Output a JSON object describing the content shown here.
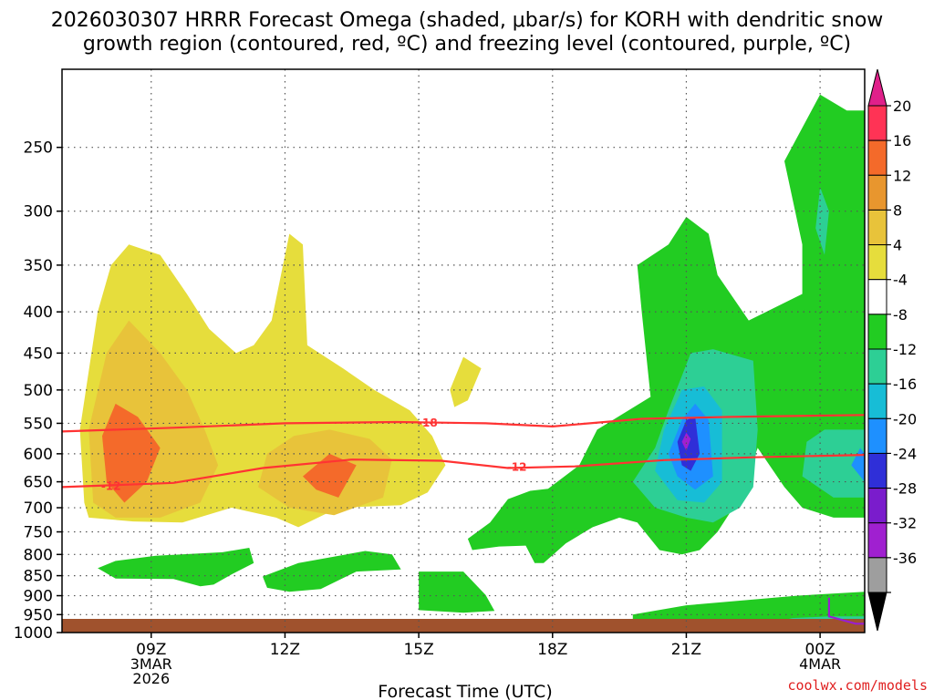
{
  "chart_data": {
    "type": "heatmap",
    "title_line1": "2026030307 HRRR Forecast Omega (shaded, μbar/s) for KORH with dendritic snow",
    "title_line2": "growth region (contoured, red, ºC) and freezing level (contoured, purple, ºC)",
    "xlabel": "Forecast Time (UTC)",
    "ylabel": "",
    "x_range": [
      7,
      25
    ],
    "y_range": [
      1000,
      200
    ],
    "y_ticks": [
      250,
      300,
      350,
      400,
      450,
      500,
      550,
      600,
      650,
      700,
      750,
      800,
      850,
      900,
      950,
      1000
    ],
    "x_ticks": [
      {
        "x": 9,
        "line1": "09Z",
        "line2": "3MAR",
        "line3": "2026"
      },
      {
        "x": 12,
        "line1": "12Z",
        "line2": "",
        "line3": ""
      },
      {
        "x": 15,
        "line1": "15Z",
        "line2": "",
        "line3": ""
      },
      {
        "x": 18,
        "line1": "18Z",
        "line2": "",
        "line3": ""
      },
      {
        "x": 21,
        "line1": "21Z",
        "line2": "",
        "line3": ""
      },
      {
        "x": 24,
        "line1": "00Z",
        "line2": "4MAR",
        "line3": ""
      }
    ],
    "colorbar": [
      {
        "label": "20",
        "color": "#ff3355"
      },
      {
        "label": "16",
        "color": "#f46a2a"
      },
      {
        "label": "12",
        "color": "#e8962e"
      },
      {
        "label": "8",
        "color": "#e8c33a"
      },
      {
        "label": "4",
        "color": "#e6dd3c"
      },
      {
        "label": "-4",
        "color": "#ffffff"
      },
      {
        "label": "-8",
        "color": "#22cc22"
      },
      {
        "label": "-12",
        "color": "#2dcf95"
      },
      {
        "label": "-16",
        "color": "#17bdd6"
      },
      {
        "label": "-20",
        "color": "#1e90ff"
      },
      {
        "label": "-24",
        "color": "#2f2fd8"
      },
      {
        "label": "-28",
        "color": "#7a1ccc"
      },
      {
        "label": "-32",
        "color": "#a020d0"
      },
      {
        "label": "-36",
        "color": "#9e9e9e"
      }
    ],
    "colorbar_top_color": "#e0208a",
    "colorbar_bottom_color": "#000000",
    "contours": [
      {
        "label": "-18",
        "color": "#ff3333",
        "x": [
          7,
          9.5,
          12,
          14.5,
          16.5,
          18,
          20,
          22,
          25
        ],
        "p": [
          563,
          557,
          550,
          548,
          550,
          555,
          543,
          540,
          537
        ]
      },
      {
        "label": "-12",
        "color": "#ff3333",
        "x": [
          7,
          9.5,
          11.5,
          13.5,
          15.5,
          17,
          18.5,
          20.5,
          22.5,
          25
        ],
        "p": [
          660,
          652,
          625,
          610,
          612,
          625,
          622,
          611,
          606,
          602
        ]
      },
      {
        "label": "",
        "color": "#9a1ed0",
        "x": [
          24.2,
          24.2,
          24.8,
          25
        ],
        "p": [
          905,
          955,
          975,
          975
        ]
      }
    ],
    "regions": [
      {
        "level": "4",
        "color": "#e6dd3c",
        "pts": [
          [
            7.5,
            690
          ],
          [
            7.4,
            560
          ],
          [
            7.8,
            400
          ],
          [
            8.1,
            350
          ],
          [
            8.5,
            330
          ],
          [
            9.2,
            340
          ],
          [
            9.8,
            380
          ],
          [
            10.3,
            420
          ],
          [
            10.9,
            450
          ],
          [
            11.3,
            440
          ],
          [
            11.7,
            410
          ],
          [
            12.1,
            320
          ],
          [
            12.4,
            330
          ],
          [
            12.5,
            440
          ],
          [
            13.3,
            470
          ],
          [
            14,
            500
          ],
          [
            14.8,
            530
          ],
          [
            15.3,
            570
          ],
          [
            15.6,
            620
          ],
          [
            15.2,
            670
          ],
          [
            14.6,
            695
          ],
          [
            13.2,
            700
          ],
          [
            12.3,
            740
          ],
          [
            11.8,
            720
          ],
          [
            10.8,
            700
          ],
          [
            9.7,
            730
          ],
          [
            8.6,
            728
          ],
          [
            7.6,
            720
          ]
        ]
      },
      {
        "level": "4",
        "color": "#e6dd3c",
        "pts": [
          [
            15.7,
            500
          ],
          [
            16,
            455
          ],
          [
            16.4,
            470
          ],
          [
            16.1,
            515
          ],
          [
            15.8,
            525
          ]
        ]
      },
      {
        "level": "8",
        "color": "#e8c33a",
        "pts": [
          [
            7.7,
            690
          ],
          [
            7.6,
            560
          ],
          [
            8,
            450
          ],
          [
            8.5,
            410
          ],
          [
            9.2,
            450
          ],
          [
            9.8,
            500
          ],
          [
            10.2,
            560
          ],
          [
            10.5,
            620
          ],
          [
            10.1,
            690
          ],
          [
            9.2,
            720
          ],
          [
            8.2,
            720
          ]
        ]
      },
      {
        "level": "8",
        "color": "#e8c33a",
        "pts": [
          [
            11.4,
            660
          ],
          [
            11.6,
            600
          ],
          [
            12.2,
            570
          ],
          [
            13,
            560
          ],
          [
            13.9,
            575
          ],
          [
            14.4,
            610
          ],
          [
            14.2,
            680
          ],
          [
            13.1,
            715
          ],
          [
            12.1,
            700
          ]
        ]
      },
      {
        "level": "12",
        "color": "#f46a2a",
        "pts": [
          [
            8,
            650
          ],
          [
            7.9,
            570
          ],
          [
            8.2,
            520
          ],
          [
            8.7,
            540
          ],
          [
            9.2,
            590
          ],
          [
            8.9,
            650
          ],
          [
            8.4,
            690
          ]
        ]
      },
      {
        "level": "12",
        "color": "#f46a2a",
        "pts": [
          [
            12.4,
            640
          ],
          [
            13,
            600
          ],
          [
            13.6,
            620
          ],
          [
            13.2,
            680
          ],
          [
            12.7,
            665
          ]
        ]
      },
      {
        "level": "-4",
        "color": "#22cc22",
        "pts": [
          [
            19.8,
            950
          ],
          [
            21,
            925
          ],
          [
            22.5,
            910
          ],
          [
            23.5,
            900
          ],
          [
            25,
            890
          ],
          [
            25,
            975
          ],
          [
            23.5,
            985
          ],
          [
            22,
            990
          ],
          [
            19.8,
            985
          ]
        ]
      },
      {
        "level": "-4",
        "color": "#22cc22",
        "pts": [
          [
            7.8,
            832
          ],
          [
            8.2,
            815
          ],
          [
            9.1,
            803
          ],
          [
            10.6,
            795
          ],
          [
            11.2,
            785
          ],
          [
            11.3,
            820
          ],
          [
            10.8,
            847
          ],
          [
            10.4,
            872
          ],
          [
            10.1,
            876
          ],
          [
            9.5,
            858
          ],
          [
            8.2,
            857
          ]
        ]
      },
      {
        "level": "-4",
        "color": "#22cc22",
        "pts": [
          [
            11.5,
            852
          ],
          [
            12.3,
            820
          ],
          [
            13.8,
            792
          ],
          [
            14.4,
            800
          ],
          [
            14.6,
            835
          ],
          [
            13.6,
            840
          ],
          [
            12.8,
            883
          ],
          [
            12.1,
            890
          ],
          [
            11.6,
            880
          ]
        ]
      },
      {
        "level": "-4",
        "color": "#22cc22",
        "pts": [
          [
            15,
            840
          ],
          [
            16,
            840
          ],
          [
            16.5,
            898
          ],
          [
            16.7,
            940
          ],
          [
            16,
            945
          ],
          [
            15,
            938
          ]
        ]
      },
      {
        "level": "-4",
        "color": "#22cc22",
        "pts": [
          [
            16.1,
            765
          ],
          [
            16.6,
            730
          ],
          [
            17,
            683
          ],
          [
            17.5,
            667
          ],
          [
            17.9,
            663
          ],
          [
            18.6,
            620
          ],
          [
            19,
            560
          ],
          [
            20.2,
            510
          ],
          [
            20,
            400
          ],
          [
            19.9,
            350
          ],
          [
            20.6,
            330
          ],
          [
            21,
            305
          ],
          [
            21.5,
            320
          ],
          [
            21.7,
            360
          ],
          [
            22.4,
            410
          ],
          [
            23.6,
            380
          ],
          [
            23.6,
            330
          ],
          [
            23.2,
            260
          ],
          [
            24,
            215
          ],
          [
            24.6,
            225
          ],
          [
            25,
            225
          ],
          [
            25,
            720
          ],
          [
            24.3,
            720
          ],
          [
            23.6,
            700
          ],
          [
            23.2,
            660
          ],
          [
            22.6,
            590
          ],
          [
            22.2,
            680
          ],
          [
            21.7,
            750
          ],
          [
            21.3,
            790
          ],
          [
            20.9,
            800
          ],
          [
            20.4,
            790
          ],
          [
            19.9,
            730
          ],
          [
            19.5,
            720
          ],
          [
            18.9,
            740
          ],
          [
            18.3,
            775
          ],
          [
            17.8,
            820
          ],
          [
            17.6,
            820
          ],
          [
            17.4,
            780
          ],
          [
            16.8,
            782
          ],
          [
            16.2,
            790
          ]
        ]
      },
      {
        "level": "-8",
        "color": "#2dcf95",
        "pts": [
          [
            19.8,
            650
          ],
          [
            20.3,
            590
          ],
          [
            20.6,
            530
          ],
          [
            21.1,
            450
          ],
          [
            21.6,
            445
          ],
          [
            22.5,
            460
          ],
          [
            22.6,
            560
          ],
          [
            22.5,
            660
          ],
          [
            22.2,
            700
          ],
          [
            21.6,
            730
          ],
          [
            21,
            720
          ],
          [
            20.3,
            700
          ]
        ]
      },
      {
        "level": "-8",
        "color": "#2dcf95",
        "pts": [
          [
            23.6,
            640
          ],
          [
            23.7,
            580
          ],
          [
            24.1,
            560
          ],
          [
            25,
            560
          ],
          [
            25,
            680
          ],
          [
            24.3,
            680
          ]
        ]
      },
      {
        "level": "-8",
        "color": "#2dcf95",
        "pts": [
          [
            23.9,
            315
          ],
          [
            24,
            280
          ],
          [
            24.2,
            300
          ],
          [
            24.1,
            340
          ]
        ]
      },
      {
        "level": "-8",
        "color": "#2dcf95",
        "pts": [
          [
            23.3,
            960
          ],
          [
            24.2,
            955
          ],
          [
            25,
            955
          ],
          [
            25,
            975
          ],
          [
            23.8,
            972
          ]
        ]
      },
      {
        "level": "-12",
        "color": "#17bdd6",
        "pts": [
          [
            20.3,
            630
          ],
          [
            20.5,
            560
          ],
          [
            20.9,
            500
          ],
          [
            21.4,
            495
          ],
          [
            21.8,
            530
          ],
          [
            21.8,
            650
          ],
          [
            21.4,
            690
          ],
          [
            20.8,
            685
          ]
        ]
      },
      {
        "level": "-16",
        "color": "#1e90ff",
        "pts": [
          [
            20.6,
            600
          ],
          [
            20.9,
            545
          ],
          [
            21.2,
            520
          ],
          [
            21.5,
            545
          ],
          [
            21.6,
            640
          ],
          [
            21.2,
            665
          ],
          [
            20.8,
            640
          ]
        ]
      },
      {
        "level": "-16",
        "color": "#1e90ff",
        "pts": [
          [
            24.7,
            620
          ],
          [
            24.9,
            590
          ],
          [
            25,
            600
          ],
          [
            25,
            650
          ]
        ]
      },
      {
        "level": "-20",
        "color": "#2f2fd8",
        "pts": [
          [
            20.8,
            580
          ],
          [
            21,
            545
          ],
          [
            21.2,
            540
          ],
          [
            21.3,
            600
          ],
          [
            21.1,
            630
          ],
          [
            20.9,
            620
          ]
        ]
      },
      {
        "level": "-24",
        "color": "#a020d0",
        "pts": [
          [
            20.9,
            580
          ],
          [
            21,
            565
          ],
          [
            21.1,
            575
          ],
          [
            21,
            595
          ]
        ]
      }
    ],
    "terrain_color": "#a0522d"
  },
  "credit": "coolwx.com/models",
  "credit_color": "#e02020"
}
